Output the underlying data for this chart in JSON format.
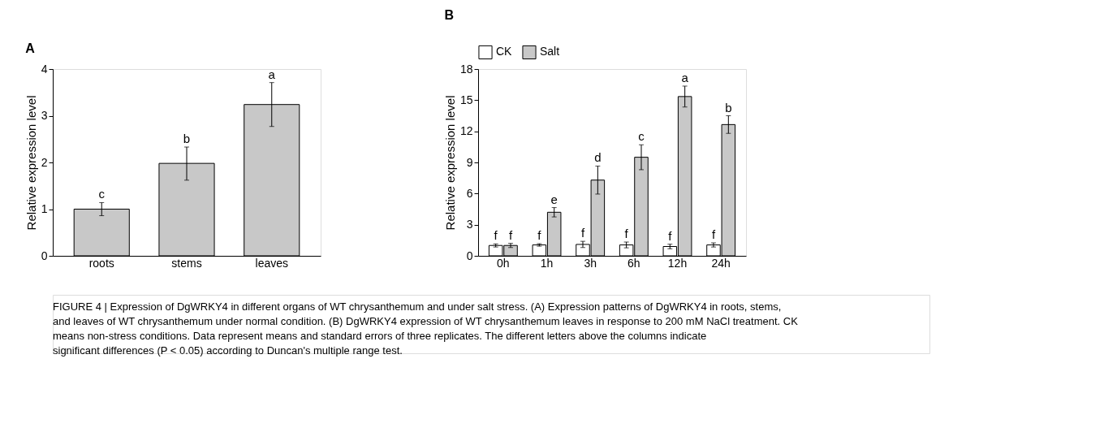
{
  "chart_data": [
    {
      "type": "bar",
      "title": "A",
      "ylabel": "Relative expression level",
      "categories": [
        "roots",
        "stems",
        "leaves"
      ],
      "series": [
        {
          "color": "#c8c8c8",
          "values": [
            1.0,
            1.98,
            3.24
          ],
          "errors": [
            0.14,
            [
              1.62,
              2.33
            ],
            [
              2.77,
              3.71
            ]
          ],
          "value_labels": [
            "c",
            "b",
            "a"
          ]
        }
      ],
      "ylim": [
        0,
        4
      ],
      "yticks": [
        {
          "value": 0,
          "label": "0"
        },
        {
          "value": 1,
          "label": "1"
        },
        {
          "value": 2,
          "label": "2"
        },
        {
          "value": 3,
          "label": "3"
        },
        {
          "value": 4,
          "label": "4"
        }
      ],
      "grid": false,
      "legend": false,
      "annotations": [
        "FIGURE 4 | Expression of DgWRKY4 in different organs of WT chrysanthemum and under salt stress. (A) Expression patterns of DgWRKY4 in roots, stems, and leaves of WT chrysanthemum under normal condition. (B) DgWRKY4 expression of WT chrysanthemum leaves in response to 200 mM NaCl treatment. CK means non-stress conditions. Data represent means and standard errors of three replicates. The different letters above the columns indicate significant differences (P < 0.05) according to Duncan's multiple range test."
      ]
    },
    {
      "type": "bar",
      "title": "B",
      "ylabel": "Relative expression level",
      "categories": [
        "0h",
        "1h",
        "3h",
        "6h",
        "12h",
        "24h"
      ],
      "series": [
        {
          "name": "CK",
          "color": "#ffffff",
          "values": [
            1.0,
            1.05,
            1.1,
            1.05,
            0.9,
            1.05
          ],
          "errors": [
            0.15,
            0.12,
            0.3,
            0.28,
            0.22,
            0.2
          ],
          "value_labels": [
            "f",
            "f",
            "f",
            "f",
            "f",
            "f"
          ]
        },
        {
          "name": "Salt",
          "color": "#c8c8c8",
          "values": [
            1.0,
            4.2,
            7.3,
            9.5,
            15.35,
            12.65
          ],
          "errors": [
            0.2,
            0.45,
            1.35,
            1.2,
            1.0,
            0.85
          ],
          "value_labels": [
            "f",
            "e",
            "d",
            "c",
            "a",
            "b"
          ]
        }
      ],
      "ylim": [
        0,
        18
      ],
      "yticks": [
        0,
        3,
        6,
        9,
        12,
        15,
        18
      ],
      "grid": false,
      "legend": "top left"
    }
  ]
}
